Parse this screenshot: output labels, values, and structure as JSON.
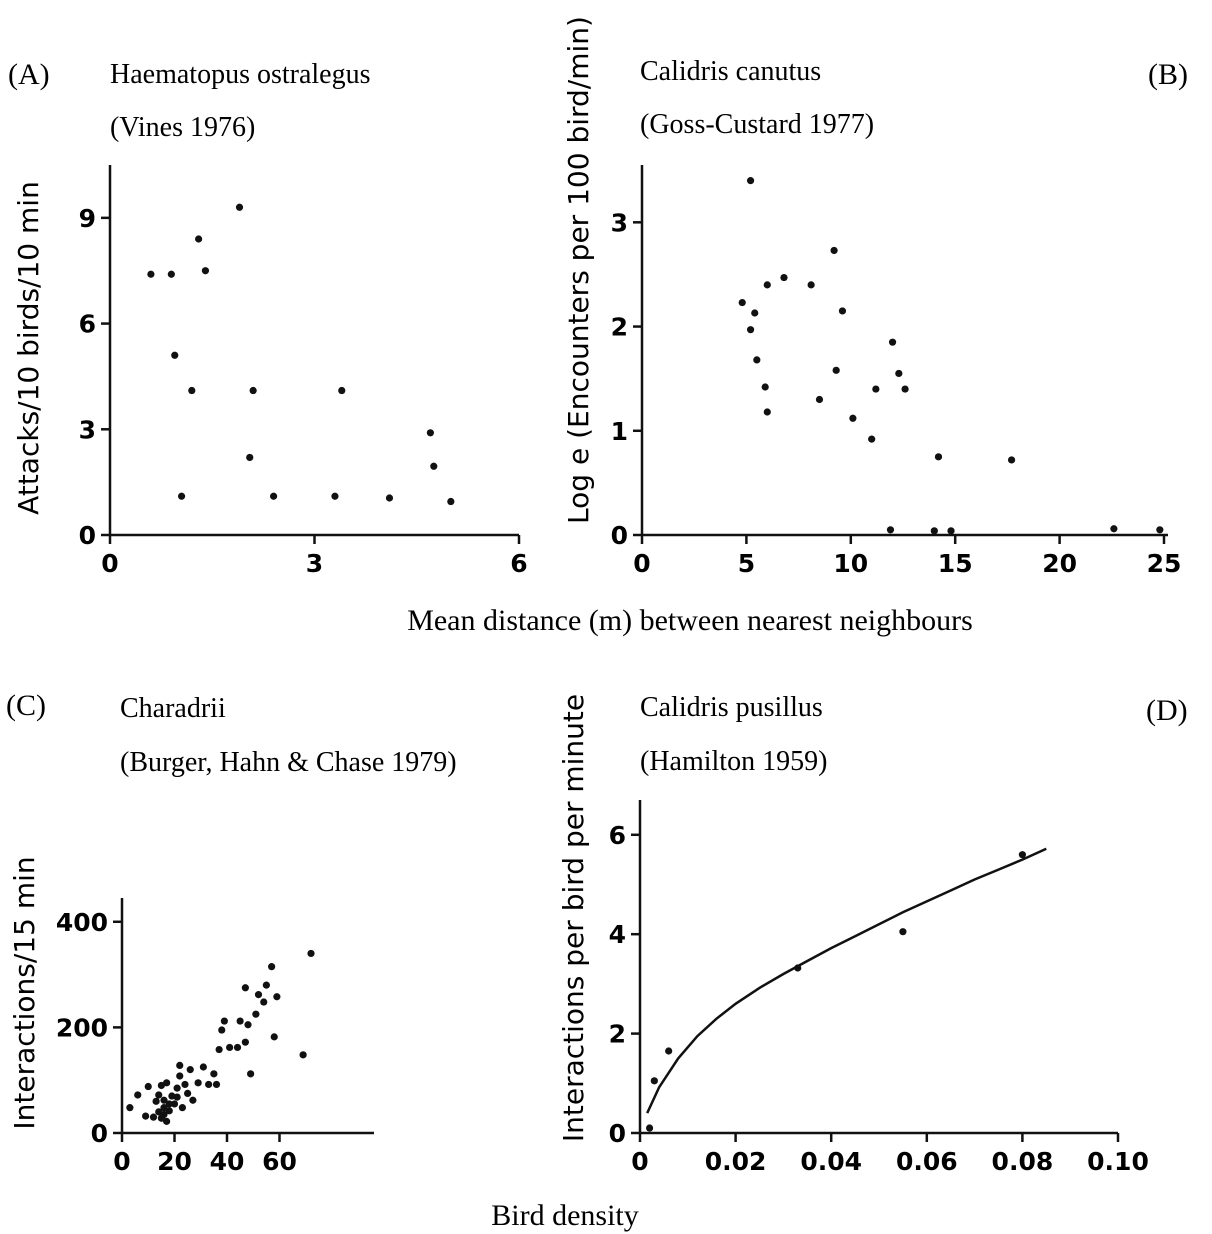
{
  "figure": {
    "shared_xlabel_top": "Mean distance (m) between nearest neighbours",
    "shared_xlabel_bottom": "Bird density"
  },
  "chart_data": [
    {
      "panel": "(A)",
      "type": "scatter",
      "title": "Haematopus ostralegus",
      "subtitle": "(Vines 1976)",
      "xlabel": "",
      "ylabel": "Attacks/10 birds/10 min",
      "xlim": [
        0,
        6
      ],
      "ylim": [
        0,
        10.5
      ],
      "xticks": [
        0,
        3,
        6
      ],
      "yticks": [
        0,
        3,
        6,
        9
      ],
      "legend": "none",
      "grid": false,
      "points": [
        [
          0.6,
          7.4
        ],
        [
          0.9,
          7.4
        ],
        [
          1.3,
          8.4
        ],
        [
          1.4,
          7.5
        ],
        [
          1.9,
          9.3
        ],
        [
          0.95,
          5.1
        ],
        [
          1.2,
          4.1
        ],
        [
          2.1,
          4.1
        ],
        [
          3.4,
          4.1
        ],
        [
          1.05,
          1.1
        ],
        [
          2.05,
          2.2
        ],
        [
          2.4,
          1.1
        ],
        [
          3.3,
          1.1
        ],
        [
          4.1,
          1.05
        ],
        [
          4.7,
          2.9
        ],
        [
          4.75,
          1.95
        ],
        [
          5.0,
          0.95
        ]
      ]
    },
    {
      "panel": "(B)",
      "type": "scatter",
      "title": "Calidris canutus",
      "subtitle": "(Goss-Custard 1977)",
      "xlabel": "",
      "ylabel": "Log e (Encounters per 100 bird/min)",
      "xlim": [
        0,
        25
      ],
      "ylim": [
        0,
        3.55
      ],
      "xticks": [
        0,
        5,
        10,
        15,
        20,
        25
      ],
      "yticks": [
        0,
        1,
        2,
        3
      ],
      "legend": "none",
      "grid": false,
      "points": [
        [
          5.2,
          3.4
        ],
        [
          9.2,
          2.73
        ],
        [
          6.8,
          2.47
        ],
        [
          6.0,
          2.4
        ],
        [
          8.1,
          2.4
        ],
        [
          4.8,
          2.23
        ],
        [
          5.4,
          2.13
        ],
        [
          9.6,
          2.15
        ],
        [
          5.2,
          1.97
        ],
        [
          5.5,
          1.68
        ],
        [
          12.0,
          1.85
        ],
        [
          12.3,
          1.55
        ],
        [
          9.3,
          1.58
        ],
        [
          5.9,
          1.42
        ],
        [
          8.5,
          1.3
        ],
        [
          11.2,
          1.4
        ],
        [
          12.6,
          1.4
        ],
        [
          6.0,
          1.18
        ],
        [
          10.1,
          1.12
        ],
        [
          11.0,
          0.92
        ],
        [
          14.2,
          0.75
        ],
        [
          17.7,
          0.72
        ],
        [
          11.9,
          0.05
        ],
        [
          14.0,
          0.04
        ],
        [
          14.8,
          0.04
        ],
        [
          22.6,
          0.06
        ],
        [
          24.8,
          0.05
        ]
      ]
    },
    {
      "panel": "(C)",
      "type": "scatter",
      "title": "Charadrii",
      "subtitle": "(Burger, Hahn & Chase 1979)",
      "xlabel": "",
      "ylabel": "Interactions/15 min",
      "xlim": [
        0,
        96
      ],
      "ylim": [
        0,
        445
      ],
      "xticks": [
        0,
        20,
        40,
        60
      ],
      "yticks": [
        0,
        200,
        400
      ],
      "legend": "none",
      "grid": false,
      "points": [
        [
          3,
          48
        ],
        [
          6,
          72
        ],
        [
          9,
          32
        ],
        [
          10,
          88
        ],
        [
          12,
          30
        ],
        [
          13,
          60
        ],
        [
          14,
          72
        ],
        [
          14,
          40
        ],
        [
          15,
          90
        ],
        [
          15,
          28
        ],
        [
          16,
          48
        ],
        [
          16,
          62
        ],
        [
          16,
          35
        ],
        [
          17,
          95
        ],
        [
          17,
          22
        ],
        [
          18,
          55
        ],
        [
          18,
          42
        ],
        [
          19,
          70
        ],
        [
          20,
          55
        ],
        [
          21,
          85
        ],
        [
          21,
          68
        ],
        [
          22,
          108
        ],
        [
          22,
          128
        ],
        [
          23,
          48
        ],
        [
          24,
          92
        ],
        [
          25,
          75
        ],
        [
          26,
          120
        ],
        [
          27,
          62
        ],
        [
          29,
          95
        ],
        [
          31,
          125
        ],
        [
          33,
          92
        ],
        [
          35,
          112
        ],
        [
          36,
          92
        ],
        [
          37,
          158
        ],
        [
          38,
          195
        ],
        [
          39,
          212
        ],
        [
          41,
          162
        ],
        [
          44,
          162
        ],
        [
          45,
          212
        ],
        [
          47,
          172
        ],
        [
          47,
          275
        ],
        [
          48,
          205
        ],
        [
          49,
          112
        ],
        [
          51,
          225
        ],
        [
          52,
          262
        ],
        [
          54,
          248
        ],
        [
          55,
          280
        ],
        [
          57,
          315
        ],
        [
          58,
          182
        ],
        [
          59,
          258
        ],
        [
          69,
          148
        ],
        [
          72,
          340
        ]
      ]
    },
    {
      "panel": "(D)",
      "type": "scatter",
      "title": "Calidris pusillus",
      "subtitle": "(Hamilton 1959)",
      "xlabel": "",
      "ylabel": "Interactions per bird per minute",
      "xlim": [
        0,
        0.1
      ],
      "ylim": [
        0,
        6.7
      ],
      "xticks": [
        0,
        0.02,
        0.04,
        0.06,
        0.08,
        0.1
      ],
      "xtick_labels": [
        "0",
        "0.02",
        "0.04",
        "0.06",
        "0.08",
        "0.10"
      ],
      "yticks": [
        0,
        2,
        4,
        6
      ],
      "legend": "none",
      "grid": false,
      "points": [
        [
          0.002,
          0.1
        ],
        [
          0.003,
          1.05
        ],
        [
          0.006,
          1.65
        ],
        [
          0.033,
          3.32
        ],
        [
          0.055,
          4.05
        ],
        [
          0.08,
          5.6
        ]
      ],
      "fit_line": {
        "x": [
          0.0015,
          0.004,
          0.008,
          0.012,
          0.016,
          0.02,
          0.025,
          0.03,
          0.035,
          0.04,
          0.045,
          0.05,
          0.055,
          0.06,
          0.065,
          0.07,
          0.075,
          0.08,
          0.085
        ],
        "y": [
          0.4,
          0.92,
          1.5,
          1.95,
          2.3,
          2.6,
          2.92,
          3.2,
          3.46,
          3.72,
          3.96,
          4.2,
          4.44,
          4.66,
          4.88,
          5.1,
          5.3,
          5.5,
          5.72
        ]
      }
    }
  ]
}
